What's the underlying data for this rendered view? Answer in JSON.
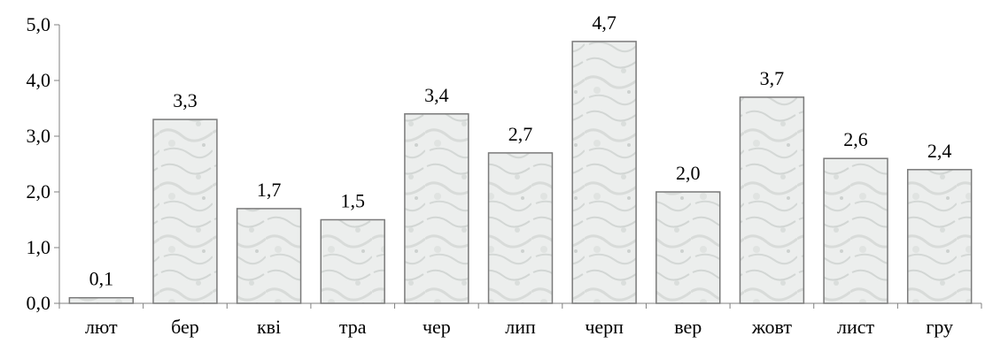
{
  "chart_data": {
    "type": "bar",
    "categories": [
      "лют",
      "бер",
      "кві",
      "тра",
      "чер",
      "лип",
      "черп",
      "вер",
      "жовт",
      "лист",
      "гру"
    ],
    "values": [
      0.1,
      3.3,
      1.7,
      1.5,
      3.4,
      2.7,
      4.7,
      2.0,
      3.7,
      2.6,
      2.4
    ],
    "data_labels": [
      "0,1",
      "3,3",
      "1,7",
      "1,5",
      "3,4",
      "2,7",
      "4,7",
      "2,0",
      "3,7",
      "2,6",
      "2,4"
    ],
    "y_ticks": [
      "0,0",
      "1,0",
      "2,0",
      "3,0",
      "4,0",
      "5,0"
    ],
    "y_tick_values": [
      0,
      1,
      2,
      3,
      4,
      5
    ],
    "ylim": [
      0,
      5
    ],
    "grid": false,
    "legend": "none",
    "title": "",
    "xlabel": "",
    "ylabel": "",
    "colors": {
      "bar_fill": "#e9ebea",
      "bar_texture": "#cfd3d1",
      "bar_stroke": "#7a7a7a",
      "axis": "#808080"
    }
  }
}
